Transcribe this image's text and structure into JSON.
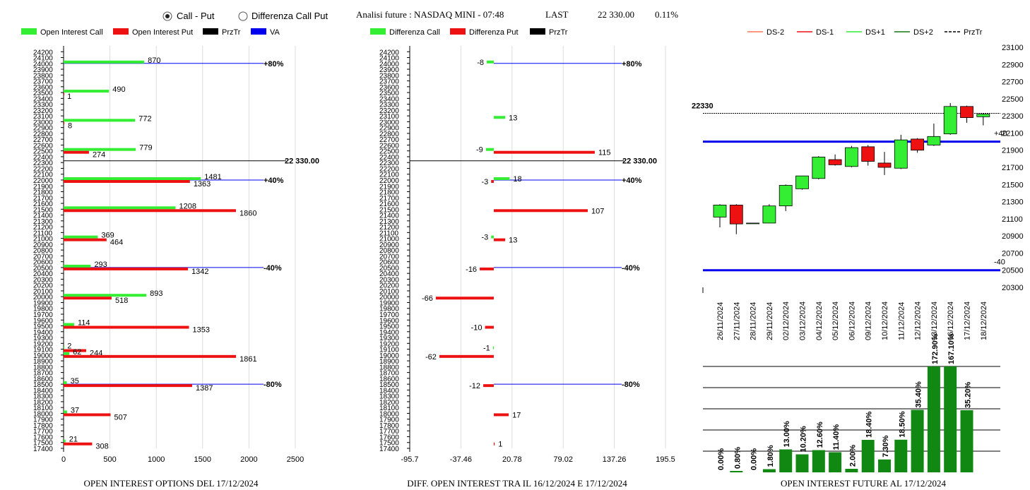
{
  "header": {
    "radio_call_put": "Call - Put",
    "radio_diff": "Differenza Call Put",
    "info_label": "Analisi future : NASDAQ MINI - 07:48",
    "last_label": "LAST",
    "last_value": "22 330.00",
    "change_value": "0.11%"
  },
  "colors": {
    "green": "#33ee33",
    "red": "#ee1111",
    "black": "#000000",
    "blue": "#0000ee",
    "dark_green": "#118811"
  },
  "chart_data": [
    {
      "type": "bar",
      "title": "OPEN INTEREST OPTIONS DEL 17/12/2024",
      "legend": [
        "Open Interest Call",
        "Open Interest Put",
        "PrzTr",
        "VA"
      ],
      "y_ticks": [
        "24200",
        "24100",
        "24000",
        "23900",
        "23800",
        "23700",
        "23600",
        "23500",
        "23400",
        "23300",
        "23200",
        "23100",
        "23000",
        "22900",
        "22800",
        "22700",
        "22600",
        "22500",
        "22400",
        "22300",
        "22200",
        "22100",
        "22000",
        "21900",
        "21800",
        "21700",
        "21600",
        "21500",
        "21400",
        "21300",
        "21200",
        "21100",
        "21000",
        "20900",
        "20800",
        "20700",
        "20600",
        "20500",
        "20400",
        "20300",
        "20200",
        "20100",
        "20000",
        "19900",
        "19800",
        "19700",
        "19600",
        "19500",
        "19400",
        "19300",
        "19200",
        "19100",
        "19000",
        "18900",
        "18800",
        "18700",
        "18600",
        "18500",
        "18400",
        "18300",
        "18200",
        "18100",
        "18000",
        "17900",
        "17800",
        "17700",
        "17600",
        "17500",
        "17400"
      ],
      "x_ticks": [
        "0",
        "500",
        "1000",
        "1500",
        "2000",
        "2500"
      ],
      "xlim": [
        0,
        2500
      ],
      "ylim": [
        17400,
        24300
      ],
      "strikes": [
        {
          "strike": 24000,
          "call": 870,
          "put": null,
          "call_label": "870",
          "put_label": ""
        },
        {
          "strike": 23500,
          "call": 490,
          "put": 1,
          "call_label": "490",
          "put_label": "1"
        },
        {
          "strike": 23000,
          "call": 772,
          "put": 8,
          "call_label": "772",
          "put_label": "8"
        },
        {
          "strike": 22500,
          "call": 779,
          "put": 274,
          "call_label": "779",
          "put_label": "274"
        },
        {
          "strike": 22000,
          "call": 1481,
          "put": 1363,
          "call_label": "1481",
          "put_label": "1363"
        },
        {
          "strike": 21500,
          "call": 1208,
          "put": 1860,
          "call_label": "1208",
          "put_label": "1860"
        },
        {
          "strike": 21000,
          "call": 369,
          "put": 464,
          "call_label": "369",
          "put_label": "464"
        },
        {
          "strike": 20500,
          "call": 293,
          "put": 1342,
          "call_label": "293",
          "put_label": "1342"
        },
        {
          "strike": 20000,
          "call": 893,
          "put": 518,
          "call_label": "893",
          "put_label": "518"
        },
        {
          "strike": 19500,
          "call": 114,
          "put": 1353,
          "call_label": "114",
          "put_label": "1353"
        },
        {
          "strike": 19100,
          "call": 2,
          "put": 244,
          "call_label": "2",
          "put_label": "244"
        },
        {
          "strike": 19000,
          "call": 62,
          "put": 1861,
          "call_label": "62",
          "put_label": "1861"
        },
        {
          "strike": 18500,
          "call": 35,
          "put": 1387,
          "call_label": "35",
          "put_label": "1387"
        },
        {
          "strike": 18000,
          "call": 37,
          "put": 507,
          "call_label": "37",
          "put_label": "507"
        },
        {
          "strike": 17500,
          "call": 21,
          "put": 308,
          "call_label": "21",
          "put_label": "308"
        }
      ],
      "va_lines": [
        {
          "y": 24000,
          "label": "+80%"
        },
        {
          "y": 22000,
          "label": "+40%"
        },
        {
          "y": 20500,
          "label": "-40%"
        },
        {
          "y": 18500,
          "label": "-80%"
        }
      ],
      "przTr": {
        "y": 22330,
        "label": "22 330.00"
      }
    },
    {
      "type": "bar",
      "title": "DIFF. OPEN INTEREST TRA IL 16/12/2024 E 17/12/2024",
      "legend": [
        "Differenza Call",
        "Differenza Put",
        "PrzTr"
      ],
      "x_ticks": [
        "-95.7",
        "-37.46",
        "20.78",
        "79.02",
        "137.26",
        "195.5"
      ],
      "xlim": [
        -95.7,
        195.5
      ],
      "ylim": [
        17400,
        24300
      ],
      "strikes": [
        {
          "strike": 24000,
          "call": -8,
          "put": null,
          "call_label": "-8",
          "put_label": ""
        },
        {
          "strike": 23050,
          "call": 13,
          "put": null,
          "call_label": "13",
          "put_label": ""
        },
        {
          "strike": 22500,
          "call": -9,
          "put": 115,
          "call_label": "-9",
          "put_label": "115"
        },
        {
          "strike": 22000,
          "call": 18,
          "put": -3,
          "call_label": "18",
          "put_label": "-3"
        },
        {
          "strike": 21500,
          "call": null,
          "put": 107,
          "call_label": "",
          "put_label": "107"
        },
        {
          "strike": 21000,
          "call": -3,
          "put": 13,
          "call_label": "-3",
          "put_label": "13"
        },
        {
          "strike": 20500,
          "call": null,
          "put": -16,
          "call_label": "",
          "put_label": "-16"
        },
        {
          "strike": 20000,
          "call": null,
          "put": -66,
          "call_label": "",
          "put_label": "-66"
        },
        {
          "strike": 19500,
          "call": null,
          "put": -10,
          "call_label": "",
          "put_label": "-10"
        },
        {
          "strike": 19100,
          "call": -1,
          "put": null,
          "call_label": "-1",
          "put_label": ""
        },
        {
          "strike": 19000,
          "call": null,
          "put": -62,
          "call_label": "",
          "put_label": "-62"
        },
        {
          "strike": 18500,
          "call": null,
          "put": -12,
          "call_label": "",
          "put_label": "-12"
        },
        {
          "strike": 18000,
          "call": null,
          "put": 17,
          "call_label": "",
          "put_label": "17"
        },
        {
          "strike": 17500,
          "call": null,
          "put": 1,
          "call_label": "",
          "put_label": "1"
        }
      ],
      "va_lines": [
        {
          "y": 24000,
          "label": "+80%"
        },
        {
          "y": 22000,
          "label": "+40%"
        },
        {
          "y": 20500,
          "label": "-40%"
        },
        {
          "y": 18500,
          "label": "-80%"
        }
      ],
      "przTr": {
        "y": 22330,
        "label": "22 330.00"
      }
    },
    {
      "type": "candlestick",
      "title": "OPEN INTEREST FUTURE AL 17/12/2024",
      "legend": [
        "DS-2",
        "DS-1",
        "DS+1",
        "DS+2",
        "PrzTr"
      ],
      "legend_colors": [
        "#ff7755",
        "#ee1111",
        "#33ee33",
        "#117711",
        "#000000"
      ],
      "y_ticks": [
        "23100",
        "22900",
        "22700",
        "22500",
        "22300",
        "22100",
        "21900",
        "21700",
        "21500",
        "21300",
        "21100",
        "20900",
        "20700",
        "20500",
        "20300"
      ],
      "ylim": [
        20300,
        23100
      ],
      "przTr": {
        "y": 22330,
        "label": "22330"
      },
      "blue_lines": [
        {
          "y": 22000,
          "label": "+40"
        },
        {
          "y": 20500,
          "label": "-40"
        }
      ],
      "candles": [
        {
          "date": "26/11/2024",
          "open": 21120,
          "close": 21260,
          "high": 21270,
          "low": 21000
        },
        {
          "date": "27/11/2024",
          "open": 21260,
          "close": 21040,
          "high": 21270,
          "low": 20920
        },
        {
          "date": "28/11/2024",
          "open": 21050,
          "close": 21050,
          "high": 21050,
          "low": 21050
        },
        {
          "date": "29/11/2024",
          "open": 21050,
          "close": 21250,
          "high": 21270,
          "low": 21050
        },
        {
          "date": "02/12/2024",
          "open": 21250,
          "close": 21490,
          "high": 21500,
          "low": 21190
        },
        {
          "date": "03/12/2024",
          "open": 21450,
          "close": 21600,
          "high": 21600,
          "low": 21440
        },
        {
          "date": "04/12/2024",
          "open": 21570,
          "close": 21820,
          "high": 21830,
          "low": 21560
        },
        {
          "date": "05/12/2024",
          "open": 21790,
          "close": 21730,
          "high": 21850,
          "low": 21720
        },
        {
          "date": "06/12/2024",
          "open": 21710,
          "close": 21930,
          "high": 21950,
          "low": 21700
        },
        {
          "date": "09/12/2024",
          "open": 21940,
          "close": 21770,
          "high": 21960,
          "low": 21720
        },
        {
          "date": "10/12/2024",
          "open": 21750,
          "close": 21700,
          "high": 21880,
          "low": 21610
        },
        {
          "date": "11/12/2024",
          "open": 21690,
          "close": 22020,
          "high": 22080,
          "low": 21680
        },
        {
          "date": "12/12/2024",
          "open": 22030,
          "close": 21900,
          "high": 22040,
          "low": 21870
        },
        {
          "date": "13/12/2024",
          "open": 21960,
          "close": 22060,
          "high": 22210,
          "low": 21950
        },
        {
          "date": "16/12/2024",
          "open": 22090,
          "close": 22410,
          "high": 22450,
          "low": 22080
        },
        {
          "date": "17/12/2024",
          "open": 22410,
          "close": 22280,
          "high": 22420,
          "low": 22220
        },
        {
          "date": "18/12/2024",
          "open": 22290,
          "close": 22320,
          "high": 22330,
          "low": 22190
        }
      ],
      "oi_bars": [
        {
          "value": 0.0,
          "label": "0.00%"
        },
        {
          "value": 0.8,
          "label": "0.80%"
        },
        {
          "value": 0.0,
          "label": "0.00%"
        },
        {
          "value": 1.8,
          "label": "1.80%"
        },
        {
          "value": 13.0,
          "label": "13.00%"
        },
        {
          "value": 10.2,
          "label": "10.20%"
        },
        {
          "value": 12.6,
          "label": "12.60%"
        },
        {
          "value": 11.4,
          "label": "11.40%"
        },
        {
          "value": 2.0,
          "label": "2.00%"
        },
        {
          "value": 18.4,
          "label": "18.40%"
        },
        {
          "value": 7.3,
          "label": "7.30%"
        },
        {
          "value": 18.5,
          "label": "18.50%"
        },
        {
          "value": 35.4,
          "label": "35.40%"
        },
        {
          "value": 172.9,
          "label": "172.90%"
        },
        {
          "value": 167.1,
          "label": "167.10%"
        },
        {
          "value": 35.2,
          "label": "35.20%"
        }
      ],
      "oi_scale": [
        0,
        60
      ]
    }
  ]
}
